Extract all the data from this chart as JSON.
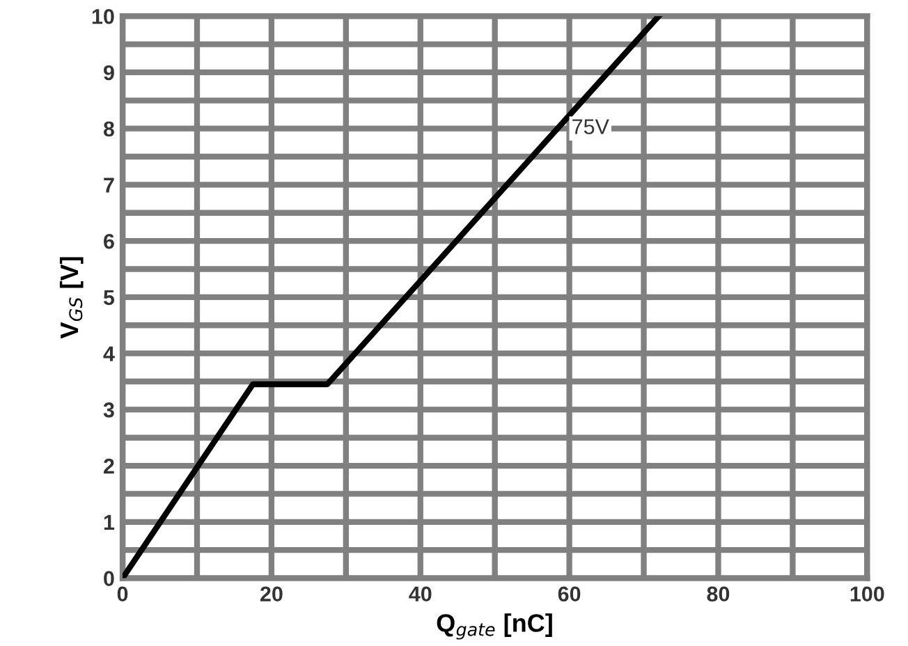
{
  "chart_data": {
    "type": "line",
    "xlabel": "Q$_{gate}$ [nC]",
    "ylabel": "V$_{GS}$ [V]",
    "x": [
      0,
      17.5,
      27.5,
      72
    ],
    "series": [
      {
        "color": "#000000",
        "values": [
          0,
          3.45,
          3.45,
          10
        ]
      }
    ],
    "xlim": [
      0,
      100
    ],
    "ylim": [
      0,
      10
    ],
    "xticks": [
      0,
      {
        "value": 10,
        "label": null
      },
      20,
      {
        "value": 30,
        "label": null
      },
      40,
      {
        "value": 50,
        "label": null
      },
      60,
      {
        "value": 70,
        "label": null
      },
      80,
      {
        "value": 90,
        "label": null
      },
      100
    ],
    "yticks": [
      0,
      {
        "value": 0.5,
        "label": null
      },
      1,
      {
        "value": 1.5,
        "label": null
      },
      2,
      {
        "value": 2.5,
        "label": null
      },
      3,
      {
        "value": 3.5,
        "label": null
      },
      4,
      {
        "value": 4.5,
        "label": null
      },
      5,
      {
        "value": 5.5,
        "label": null
      },
      6,
      {
        "value": 6.5,
        "label": null
      },
      7,
      {
        "value": 7.5,
        "label": null
      },
      8,
      {
        "value": 8.5,
        "label": null
      },
      9,
      {
        "value": 9.5,
        "label": null
      },
      10
    ],
    "annotations": [
      {
        "text": "75V",
        "x": 59.5,
        "y": 8
      }
    ],
    "grid": true,
    "legend": false,
    "marker": "none",
    "line_style": "solid"
  }
}
